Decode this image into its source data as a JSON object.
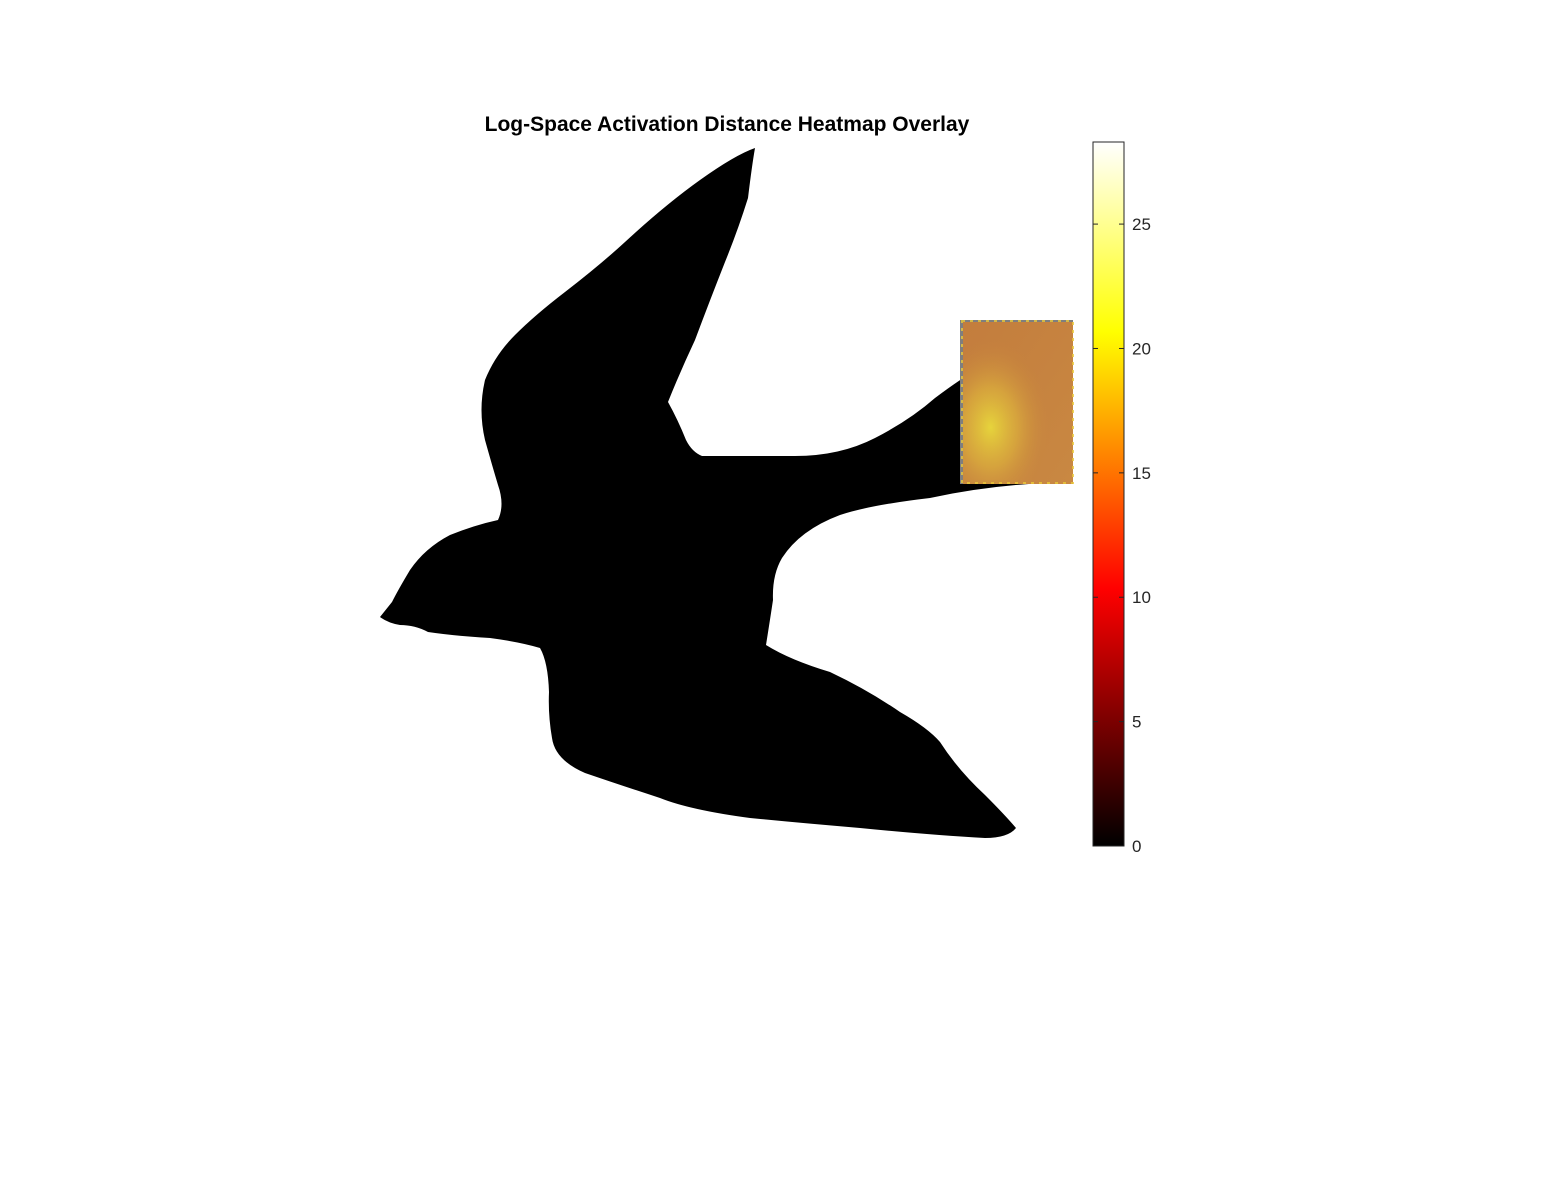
{
  "chart_data": {
    "type": "heatmap",
    "title": "Log-Space Activation Distance Heatmap Overlay",
    "colormap": "hot",
    "colorbar": {
      "limits": [
        0,
        28.3
      ],
      "ticks": [
        0,
        5,
        10,
        15,
        20,
        25
      ],
      "tick_labels": [
        "0",
        "5",
        "10",
        "15",
        "20",
        "25"
      ],
      "placement": "right"
    },
    "background": "bird silhouette (black) on white",
    "overlay": {
      "region": "tail of bird",
      "dominant_value": 17.5,
      "hotspot_value": 23,
      "hotspot_location": "lower-left of overlay patch",
      "edge_value": 22,
      "missing_value_color": "#7f7f7f"
    },
    "axes_visible": false,
    "grid": false
  }
}
